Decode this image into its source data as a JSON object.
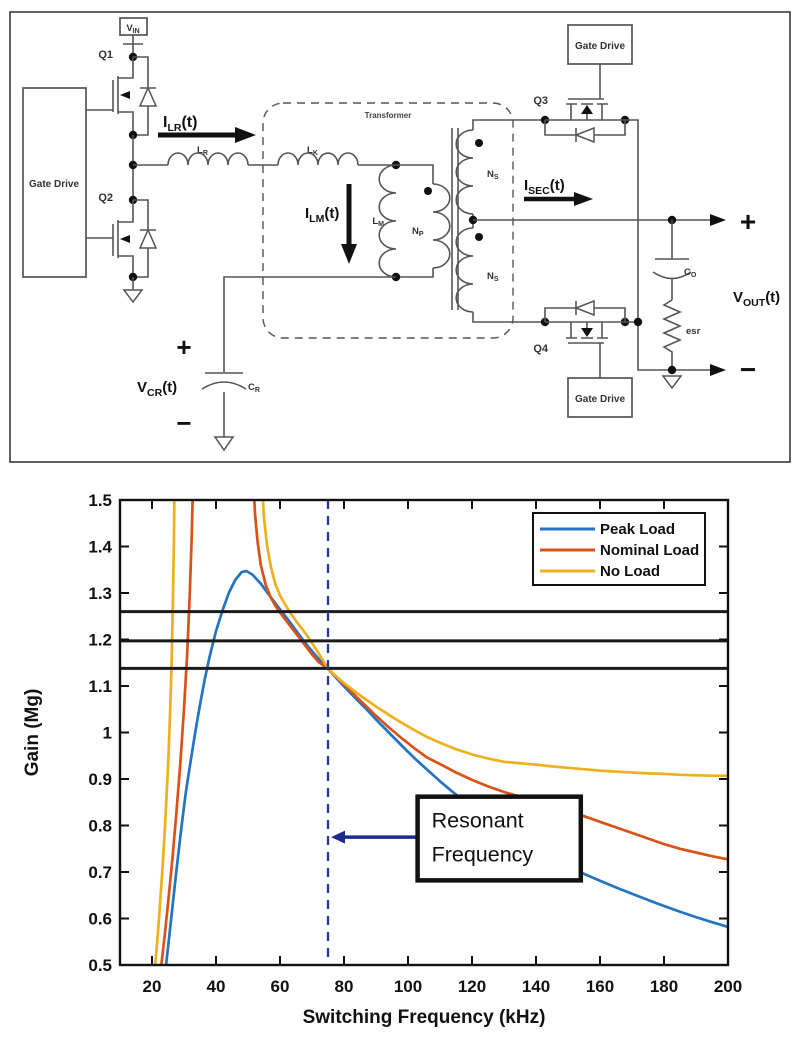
{
  "circuit": {
    "gate_drive": "Gate Drive",
    "transformer": "Transformer",
    "vin": {
      "main": "V",
      "sub": "IN"
    },
    "q1": "Q1",
    "q2": "Q2",
    "q3": "Q3",
    "q4": "Q4",
    "ilr": {
      "main": "I",
      "sub": "LR",
      "tail": "(t)"
    },
    "ilm": {
      "main": "I",
      "sub": "LM",
      "tail": "(t)"
    },
    "isec": {
      "main": "I",
      "sub": "SEC",
      "tail": "(t)"
    },
    "vcr": {
      "main": "V",
      "sub": "CR",
      "tail": "(t)"
    },
    "vout": {
      "main": "V",
      "sub": "OUT",
      "tail": "(t)"
    },
    "lr": {
      "main": "L",
      "sub": "R"
    },
    "lk": {
      "main": "L",
      "sub": "K"
    },
    "lm": {
      "main": "L",
      "sub": "M"
    },
    "np": {
      "main": "N",
      "sub": "P"
    },
    "ns": {
      "main": "N",
      "sub": "S"
    },
    "cr": {
      "main": "C",
      "sub": "R"
    },
    "co": {
      "main": "C",
      "sub": "O"
    },
    "esr": "esr",
    "plus": "+",
    "minus": "−"
  },
  "chart_data": {
    "type": "line",
    "title": "",
    "xlabel": "Switching Frequency (kHz)",
    "ylabel": "Gain (Mg)",
    "xlim": [
      10,
      200
    ],
    "ylim": [
      0.5,
      1.5
    ],
    "xticks": [
      20,
      40,
      60,
      80,
      100,
      120,
      140,
      160,
      180,
      200
    ],
    "ytick_labels": [
      "0.5",
      "0.6",
      "0.7",
      "0.8",
      "0.9",
      "1",
      "1.1",
      "1.2",
      "1.3",
      "1.4",
      "1.5"
    ],
    "ytick_values": [
      0.5,
      0.6,
      0.7,
      0.8,
      0.9,
      1.0,
      1.1,
      1.2,
      1.3,
      1.4,
      1.5
    ],
    "grid": false,
    "legend_position": "top-right",
    "series": [
      {
        "name": "Peak Load",
        "color": "#2474C4",
        "points": [
          [
            24.4,
            0.5
          ],
          [
            26,
            0.6
          ],
          [
            27.5,
            0.695
          ],
          [
            29,
            0.785
          ],
          [
            30.5,
            0.868
          ],
          [
            32,
            0.935
          ],
          [
            33.5,
            1.0
          ],
          [
            35,
            1.06
          ],
          [
            36.5,
            1.115
          ],
          [
            38,
            1.163
          ],
          [
            40,
            1.218
          ],
          [
            42,
            1.262
          ],
          [
            44,
            1.3
          ],
          [
            46,
            1.328
          ],
          [
            48,
            1.345
          ],
          [
            49.5,
            1.347
          ],
          [
            51.5,
            1.339
          ],
          [
            54,
            1.32
          ],
          [
            57,
            1.292
          ],
          [
            60,
            1.265
          ],
          [
            63,
            1.238
          ],
          [
            66,
            1.21
          ],
          [
            69,
            1.183
          ],
          [
            72,
            1.159
          ],
          [
            75,
            1.137
          ],
          [
            78,
            1.114
          ],
          [
            81,
            1.092
          ],
          [
            84,
            1.071
          ],
          [
            87,
            1.05
          ],
          [
            90,
            1.028
          ],
          [
            94,
            1.0
          ],
          [
            98,
            0.972
          ],
          [
            102,
            0.945
          ],
          [
            106,
            0.92
          ],
          [
            110,
            0.895
          ],
          [
            114,
            0.872
          ],
          [
            118,
            0.85
          ],
          [
            124,
            0.818
          ],
          [
            130,
            0.79
          ],
          [
            136,
            0.763
          ],
          [
            142,
            0.738
          ],
          [
            148,
            0.716
          ],
          [
            154,
            0.699
          ],
          [
            160,
            0.681
          ],
          [
            166,
            0.664
          ],
          [
            172,
            0.648
          ],
          [
            178,
            0.632
          ],
          [
            184,
            0.617
          ],
          [
            190,
            0.603
          ],
          [
            195,
            0.592
          ],
          [
            200,
            0.582
          ]
        ]
      },
      {
        "name": "Nominal Load",
        "color": "#D95319",
        "points": [
          [
            22.9,
            0.5
          ],
          [
            24,
            0.565
          ],
          [
            25.2,
            0.645
          ],
          [
            26.4,
            0.73
          ],
          [
            27.6,
            0.825
          ],
          [
            28.8,
            0.93
          ],
          [
            30,
            1.05
          ],
          [
            31,
            1.17
          ],
          [
            31.8,
            1.3
          ],
          [
            32.4,
            1.42
          ],
          [
            32.9,
            1.56
          ],
          [
            null,
            null
          ],
          [
            51.6,
            1.56
          ],
          [
            52.2,
            1.47
          ],
          [
            53,
            1.41
          ],
          [
            54,
            1.36
          ],
          [
            55.5,
            1.318
          ],
          [
            57,
            1.292
          ],
          [
            58.5,
            1.273
          ],
          [
            60,
            1.258
          ],
          [
            62,
            1.24
          ],
          [
            64,
            1.222
          ],
          [
            66,
            1.204
          ],
          [
            68,
            1.186
          ],
          [
            70,
            1.168
          ],
          [
            72,
            1.152
          ],
          [
            75,
            1.137
          ],
          [
            78,
            1.117
          ],
          [
            81,
            1.097
          ],
          [
            84,
            1.076
          ],
          [
            87,
            1.056
          ],
          [
            90,
            1.036
          ],
          [
            94,
            1.011
          ],
          [
            98,
            0.988
          ],
          [
            102,
            0.966
          ],
          [
            106,
            0.946
          ],
          [
            110,
            0.932
          ],
          [
            115,
            0.914
          ],
          [
            120,
            0.898
          ],
          [
            125,
            0.884
          ],
          [
            130,
            0.872
          ],
          [
            135,
            0.862
          ],
          [
            140,
            0.852
          ],
          [
            145,
            0.842
          ],
          [
            150,
            0.832
          ],
          [
            155,
            0.82
          ],
          [
            160,
            0.808
          ],
          [
            165,
            0.796
          ],
          [
            170,
            0.784
          ],
          [
            175,
            0.772
          ],
          [
            180,
            0.76
          ],
          [
            185,
            0.75
          ],
          [
            190,
            0.742
          ],
          [
            195,
            0.734
          ],
          [
            200,
            0.727
          ]
        ]
      },
      {
        "name": "No Load",
        "color": "#EDB120",
        "points": [
          [
            21.0,
            0.5
          ],
          [
            21.8,
            0.565
          ],
          [
            22.6,
            0.64
          ],
          [
            23.4,
            0.72
          ],
          [
            24.2,
            0.815
          ],
          [
            25,
            0.925
          ],
          [
            25.6,
            1.03
          ],
          [
            26.1,
            1.14
          ],
          [
            26.5,
            1.27
          ],
          [
            26.8,
            1.4
          ],
          [
            27.1,
            1.56
          ],
          [
            null,
            null
          ],
          [
            54.2,
            1.56
          ],
          [
            55,
            1.46
          ],
          [
            56,
            1.4
          ],
          [
            57.2,
            1.355
          ],
          [
            58.6,
            1.318
          ],
          [
            60,
            1.295
          ],
          [
            61.6,
            1.275
          ],
          [
            63.2,
            1.258
          ],
          [
            65,
            1.24
          ],
          [
            67,
            1.222
          ],
          [
            69,
            1.203
          ],
          [
            71,
            1.182
          ],
          [
            73,
            1.16
          ],
          [
            75,
            1.137
          ],
          [
            77,
            1.124
          ],
          [
            79,
            1.112
          ],
          [
            81,
            1.101
          ],
          [
            84,
            1.085
          ],
          [
            87,
            1.07
          ],
          [
            90,
            1.056
          ],
          [
            94,
            1.038
          ],
          [
            98,
            1.021
          ],
          [
            102,
            1.005
          ],
          [
            106,
            0.99
          ],
          [
            110,
            0.978
          ],
          [
            115,
            0.964
          ],
          [
            120,
            0.953
          ],
          [
            125,
            0.944
          ],
          [
            130,
            0.937
          ],
          [
            135,
            0.934
          ],
          [
            140,
            0.931
          ],
          [
            145,
            0.927
          ],
          [
            150,
            0.924
          ],
          [
            155,
            0.921
          ],
          [
            160,
            0.918
          ],
          [
            165,
            0.916
          ],
          [
            170,
            0.914
          ],
          [
            175,
            0.912
          ],
          [
            180,
            0.911
          ],
          [
            185,
            0.909
          ],
          [
            190,
            0.908
          ],
          [
            195,
            0.907
          ],
          [
            200,
            0.907
          ]
        ]
      }
    ],
    "reference_lines": {
      "horizontal_gains": [
        1.26,
        1.197,
        1.138
      ],
      "horizontal_color": "#1a1a1a",
      "resonant_frequency_khz": 75,
      "dashed_line_color": "#2B35A0"
    },
    "annotation": {
      "text_lines": [
        "Resonant",
        "Frequency"
      ],
      "box_khz": [
        103,
        154
      ],
      "box_gain": [
        0.682,
        0.862
      ],
      "arrow": {
        "from_khz": 103,
        "to_khz": 77.5,
        "at_gain": 0.775,
        "color": "#1B2C8C"
      }
    }
  }
}
